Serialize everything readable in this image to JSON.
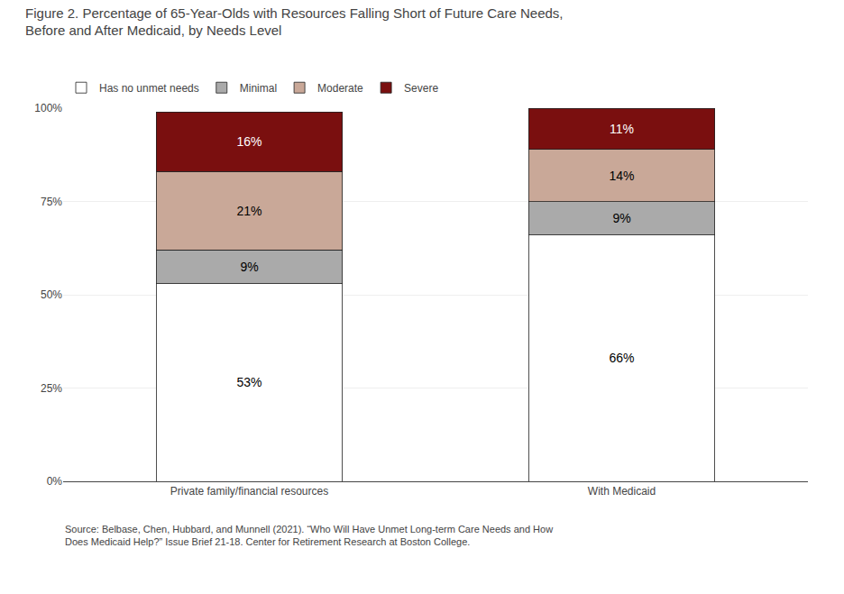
{
  "chart_data": {
    "type": "bar",
    "stacked": true,
    "title": "Figure 2. Percentage of 65-Year-Olds with Resources Falling Short of Future Care Needs,\nBefore and After Medicaid, by Needs Level",
    "categories": [
      "Private family/financial resources",
      "With Medicaid"
    ],
    "series": [
      {
        "name": "Has no unmet needs",
        "color": "#ffffff",
        "values": [
          53,
          66
        ],
        "value_labels": [
          "53%",
          "66%"
        ]
      },
      {
        "name": "Minimal",
        "color": "#aaaaaa",
        "values": [
          9,
          9
        ],
        "value_labels": [
          "9%",
          "9%"
        ]
      },
      {
        "name": "Moderate",
        "color": "#c9a898",
        "values": [
          21,
          14
        ],
        "value_labels": [
          "21%",
          "14%"
        ]
      },
      {
        "name": "Severe",
        "color": "#7a0f0f",
        "values": [
          16,
          11
        ],
        "value_labels": [
          "16%",
          "11%"
        ]
      }
    ],
    "ylim": [
      0,
      100
    ],
    "yticks": [
      {
        "value": 0,
        "label": "0%"
      },
      {
        "value": 25,
        "label": "25%"
      },
      {
        "value": 50,
        "label": "50%"
      },
      {
        "value": 75,
        "label": "75%"
      },
      {
        "value": 100,
        "label": "100%"
      }
    ],
    "grid": true,
    "legend": "top",
    "data_labels": true,
    "annotations": [
      "Source: Belbase, Chen, Hubbard, and Munnell (2021). “Who Will Have Unmet Long-term Care Needs and How\nDoes Medicaid Help?” Issue Brief 21-18. Center for Retirement Research at Boston College."
    ]
  }
}
